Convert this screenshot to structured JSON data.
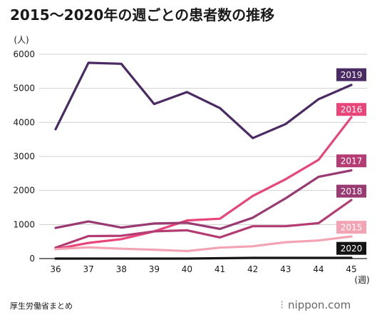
{
  "title": "2015～2020年の週ごとの患者数の推移",
  "source": "厚生労働省まとめ",
  "brand": "nippon.com",
  "chart_data": {
    "type": "line",
    "title": "2015～2020年の週ごとの患者数の推移",
    "ylabel": "(人)",
    "xlabel": "(週)",
    "x": [
      36,
      37,
      38,
      39,
      40,
      41,
      42,
      43,
      44,
      45
    ],
    "yticks": [
      0,
      1000,
      2000,
      3000,
      4000,
      5000,
      6000
    ],
    "ylim": [
      0,
      6000
    ],
    "grid": true,
    "legend": "line-end labels",
    "series": [
      {
        "name": "2019",
        "color": "#4a2a63",
        "values": [
          3800,
          5750,
          5720,
          4540,
          4890,
          4420,
          3540,
          3950,
          4680,
          5100
        ]
      },
      {
        "name": "2016",
        "color": "#e8457a",
        "values": [
          280,
          460,
          570,
          800,
          1120,
          1170,
          1840,
          2330,
          2900,
          4150
        ]
      },
      {
        "name": "2017",
        "color": "#b33d72",
        "values": [
          320,
          660,
          670,
          800,
          830,
          620,
          950,
          950,
          1040,
          1720
        ]
      },
      {
        "name": "2018",
        "color": "#9a3a73",
        "values": [
          900,
          1090,
          910,
          1030,
          1050,
          870,
          1200,
          1770,
          2400,
          2590
        ]
      },
      {
        "name": "2015",
        "color": "#f2a3b4",
        "values": [
          280,
          330,
          290,
          260,
          220,
          320,
          360,
          480,
          530,
          650
        ]
      },
      {
        "name": "2020",
        "color": "#141414",
        "values": [
          0,
          0,
          0,
          0,
          0,
          10,
          20,
          20,
          20,
          20
        ]
      }
    ],
    "badges": [
      {
        "name": "2019",
        "value": 5400
      },
      {
        "name": "2016",
        "value": 4380
      },
      {
        "name": "2017",
        "value": 2870
      },
      {
        "name": "2018",
        "value": 1980
      },
      {
        "name": "2015",
        "value": 920
      },
      {
        "name": "2020",
        "value": 300
      }
    ]
  }
}
